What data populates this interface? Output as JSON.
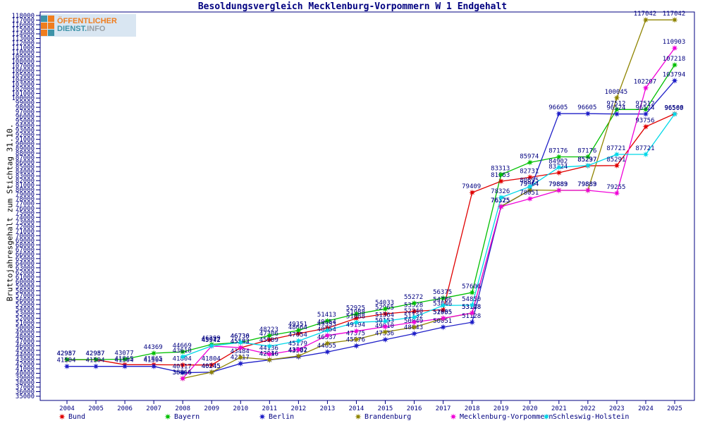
{
  "title": "Besoldungsvergleich Mecklenburg-Vorpommern W 1 Endgehalt",
  "logo": {
    "line1": "ÖFFENTLICHER",
    "line2_part1": "DIENST.",
    "line2_part2": "INFO"
  },
  "y_axis": {
    "label": "Bruttojahresgehalt zum Stichtag 31.10.",
    "min": 35000,
    "max": 118000,
    "step": 1000
  },
  "x_axis": {
    "years": [
      2004,
      2005,
      2006,
      2007,
      2008,
      2009,
      2010,
      2011,
      2012,
      2013,
      2014,
      2015,
      2016,
      2017,
      2018,
      2019,
      2020,
      2021,
      2022,
      2023,
      2024,
      2025
    ]
  },
  "colors": {
    "axis_text": "#000080",
    "frame": "#000080",
    "bund": "#e00000",
    "bayern": "#00c000",
    "berlin": "#1f1fc8",
    "brandenburg": "#8f8400",
    "mecklenburg_vorpommern": "#f000d8",
    "schleswig_holstein": "#00d8e8"
  },
  "legend": [
    {
      "label": "Bund",
      "color": "#e00000"
    },
    {
      "label": "Bayern",
      "color": "#00c000"
    },
    {
      "label": "Berlin",
      "color": "#1f1fc8"
    },
    {
      "label": "Brandenburg",
      "color": "#8f8400"
    },
    {
      "label": "Mecklenburg-Vorpommern",
      "color": "#f000d8"
    },
    {
      "label": "Schleswig-Holstein",
      "color": "#00d8e8"
    }
  ],
  "chart_data": {
    "type": "line",
    "title": "Besoldungsvergleich Mecklenburg-Vorpommern W 1 Endgehalt",
    "xlabel": "",
    "ylabel": "Bruttojahresgehalt zum Stichtag 31.10.",
    "ylim": [
      35000,
      118000
    ],
    "grid": false,
    "legend_position": "bottom",
    "point_labels": true,
    "x": [
      2004,
      2005,
      2006,
      2007,
      2008,
      2009,
      2010,
      2011,
      2012,
      2013,
      2014,
      2015,
      2016,
      2017,
      2018,
      2019,
      2020,
      2021,
      2022,
      2023,
      2024,
      2025
    ],
    "series": [
      {
        "name": "Bund",
        "key": "bund",
        "color": "#e00000",
        "values": [
          42957,
          42957,
          41865,
          41865,
          41804,
          41804,
          45582,
          47306,
          48664,
          49854,
          51988,
          52965,
          53528,
          53846,
          79409,
          81863,
          82731,
          83724,
          85237,
          85291,
          93756,
          96568
        ]
      },
      {
        "name": "Bayern",
        "key": "bayern",
        "color": "#00c000",
        "values": [
          42987,
          42987,
          43077,
          44369,
          44669,
          46299,
          46736,
          48223,
          49351,
          51413,
          52925,
          54033,
          55272,
          56375,
          57606,
          83313,
          85974,
          87176,
          87176,
          97512,
          97512,
          107218
        ]
      },
      {
        "name": "Berlin",
        "key": "berlin",
        "color": "#1f1fc8",
        "values": [
          41504,
          41504,
          41504,
          41504,
          40117,
          40245,
          42117,
          42916,
          43597,
          44655,
          45976,
          47336,
          48643,
          50051,
          51128,
          76325,
          79964,
          96605,
          96605,
          96524,
          96524,
          103794
        ]
      },
      {
        "name": "Brandenburg",
        "key": "brandenburg",
        "color": "#8f8400",
        "values": [
          null,
          null,
          null,
          null,
          38866,
          40245,
          43484,
          42946,
          43782,
          46537,
          47375,
          49010,
          50049,
          51955,
          53128,
          76375,
          79964,
          79883,
          79883,
          100045,
          117042,
          117042
        ]
      },
      {
        "name": "Mecklenburg-Vorpommern",
        "key": "mecklenburg_vorpommern",
        "color": "#f000d8",
        "values": [
          null,
          null,
          null,
          null,
          38866,
          45942,
          45583,
          44136,
          45179,
          48254,
          49194,
          50153,
          51132,
          52005,
          53148,
          76325,
          78051,
          79889,
          79889,
          79255,
          102207,
          110903
        ]
      },
      {
        "name": "Schleswig-Holstein",
        "key": "schleswig_holstein",
        "color": "#00d8e8",
        "values": [
          null,
          null,
          null,
          null,
          43618,
          45972,
          46730,
          45909,
          47054,
          49353,
          51088,
          51364,
          52240,
          54786,
          54850,
          78326,
          80695,
          84902,
          85297,
          87721,
          87721,
          96509
        ]
      }
    ]
  }
}
